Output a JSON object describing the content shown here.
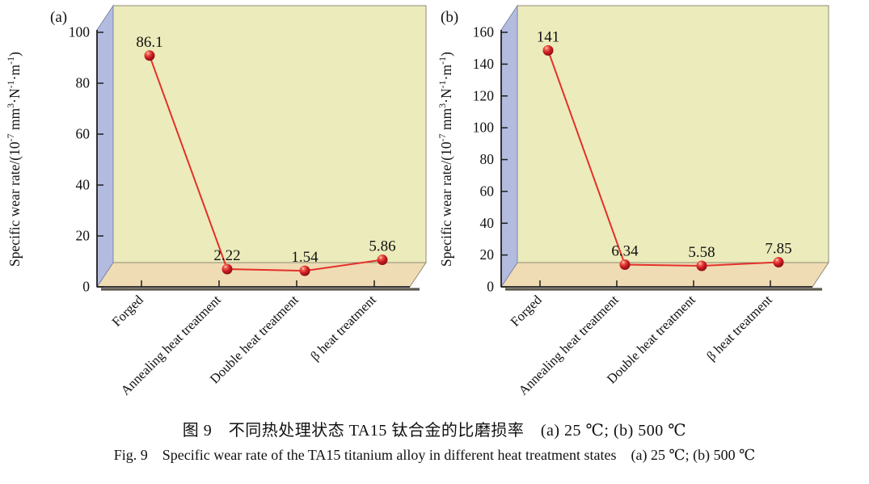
{
  "figure": {
    "caption_zh": "图 9　不同热处理状态 TA15 钛合金的比磨损率　(a) 25 ℃; (b) 500 ℃",
    "caption_en": "Fig. 9　Specific wear rate of the TA15 titanium alloy in different heat treatment states　(a) 25 ℃; (b) 500 ℃"
  },
  "colors": {
    "line": "#e2312a",
    "marker_edge": "#7b0a11",
    "back_wall": "#ecebbb",
    "side_wall": "#b3bcdf",
    "floor": "#f0dcb4",
    "panel_edge": "#8f8b79",
    "axis": "#1f1f1f",
    "shadow": "#5c584f",
    "text": "#111111"
  },
  "chart_data": [
    {
      "type": "line",
      "panel": "(a)",
      "condition": "25 ℃",
      "title": "",
      "xlabel": "",
      "ylabel": "Specific wear rate/(10-7 mm3·N-1·m-1)",
      "ylabel_parts": [
        {
          "t": "Specific wear rate/(10"
        },
        {
          "t": "-7",
          "sup": true
        },
        {
          "t": " mm"
        },
        {
          "t": "3",
          "sup": true
        },
        {
          "t": "·N"
        },
        {
          "t": "-1",
          "sup": true
        },
        {
          "t": "·m"
        },
        {
          "t": "-1",
          "sup": true
        },
        {
          "t": ")"
        }
      ],
      "categories": [
        "Forged",
        "Annealing heat treatment",
        "Double heat treatment",
        "β heat treatment"
      ],
      "values": [
        86.1,
        2.22,
        1.54,
        5.86
      ],
      "point_labels": [
        "86.1",
        "2.22",
        "1.54",
        "5.86"
      ],
      "ylim": [
        0,
        100
      ],
      "yticks": [
        0,
        20,
        40,
        60,
        80,
        100
      ],
      "grid": false,
      "legend": "none",
      "style": "pseudo-3d line with sphere markers"
    },
    {
      "type": "line",
      "panel": "(b)",
      "condition": "500 ℃",
      "title": "",
      "xlabel": "",
      "ylabel": "Specific wear rate/(10-7 mm3·N-1·m-1)",
      "ylabel_parts": [
        {
          "t": "Specific wear rate/(10"
        },
        {
          "t": "-7",
          "sup": true
        },
        {
          "t": " mm"
        },
        {
          "t": "3",
          "sup": true
        },
        {
          "t": "·N"
        },
        {
          "t": "-1",
          "sup": true
        },
        {
          "t": "·m"
        },
        {
          "t": "-1",
          "sup": true
        },
        {
          "t": ")"
        }
      ],
      "categories": [
        "Forged",
        "Annealing heat treatment",
        "Double heat treatment",
        "β heat treatment"
      ],
      "values": [
        141,
        6.34,
        5.58,
        7.85
      ],
      "point_labels": [
        "141",
        "6.34",
        "5.58",
        "7.85"
      ],
      "ylim": [
        0,
        160
      ],
      "yticks": [
        0,
        20,
        40,
        60,
        80,
        100,
        120,
        140,
        160
      ],
      "grid": false,
      "legend": "none",
      "style": "pseudo-3d line with sphere markers"
    }
  ]
}
